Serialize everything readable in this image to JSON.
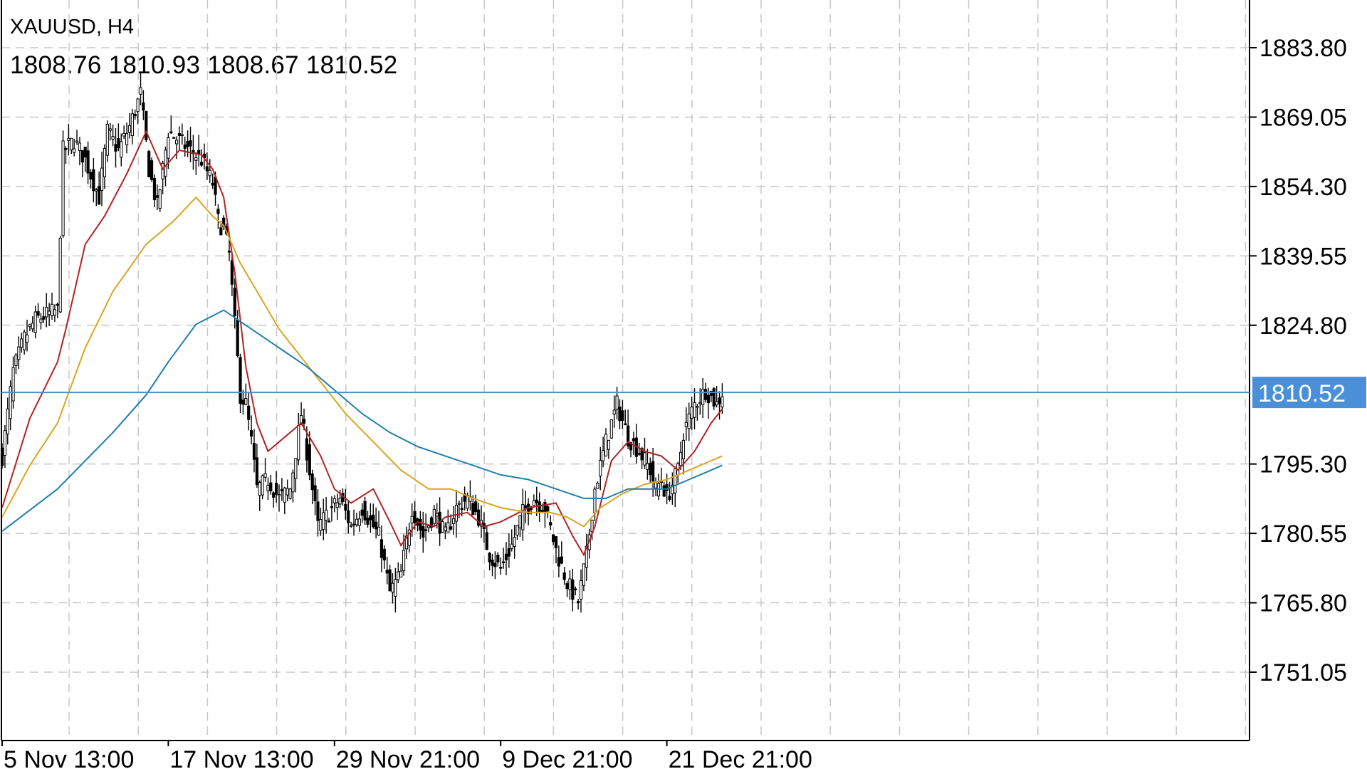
{
  "symbol_title": "XAUUSD, H4",
  "ohlc_text": "1808.76 1810.93 1808.67 1810.52",
  "colors": {
    "background": "#ffffff",
    "grid": "#c8c8c8",
    "candle": "#000000",
    "price_line": "#4a90c8",
    "price_tag_bg": "#4a90d9",
    "ma_fast": "#b22222",
    "ma_mid": "#daa520",
    "ma_slow": "#1f7fae"
  },
  "chart_data": {
    "type": "candlestick",
    "title": "XAUUSD, H4",
    "ylim": [
      1741.0,
      1893.0
    ],
    "y_ticks": [
      "1883.80",
      "1869.05",
      "1854.30",
      "1839.55",
      "1824.80",
      "1795.30",
      "1780.55",
      "1765.80",
      "1751.05"
    ],
    "y_tick_values": [
      1883.8,
      1869.05,
      1854.3,
      1839.55,
      1824.8,
      1795.3,
      1780.55,
      1765.8,
      1751.05
    ],
    "x_labels": [
      "5 Nov 13:00",
      "17 Nov 13:00",
      "29 Nov 21:00",
      "9 Dec 21:00",
      "21 Dec 21:00"
    ],
    "x_label_bar_index": [
      0,
      60,
      120,
      180,
      240
    ],
    "current_price": "1810.52",
    "current_price_value": 1810.52,
    "grid": true,
    "close_points": [
      [
        0,
        1797
      ],
      [
        4,
        1815
      ],
      [
        8,
        1822
      ],
      [
        12,
        1826
      ],
      [
        16,
        1827
      ],
      [
        20,
        1828
      ],
      [
        22,
        1862
      ],
      [
        26,
        1864
      ],
      [
        30,
        1860
      ],
      [
        35,
        1852
      ],
      [
        38,
        1866
      ],
      [
        42,
        1862
      ],
      [
        46,
        1867
      ],
      [
        50,
        1874
      ],
      [
        53,
        1858
      ],
      [
        56,
        1850
      ],
      [
        60,
        1866
      ],
      [
        64,
        1864
      ],
      [
        68,
        1862
      ],
      [
        72,
        1860
      ],
      [
        76,
        1855
      ],
      [
        78,
        1847
      ],
      [
        80,
        1845
      ],
      [
        82,
        1840
      ],
      [
        84,
        1825
      ],
      [
        86,
        1810
      ],
      [
        88,
        1808
      ],
      [
        90,
        1800
      ],
      [
        92,
        1790
      ],
      [
        96,
        1792
      ],
      [
        100,
        1788
      ],
      [
        104,
        1790
      ],
      [
        108,
        1806
      ],
      [
        111,
        1794
      ],
      [
        114,
        1782
      ],
      [
        118,
        1785
      ],
      [
        122,
        1788
      ],
      [
        126,
        1782
      ],
      [
        130,
        1786
      ],
      [
        136,
        1780
      ],
      [
        140,
        1768
      ],
      [
        144,
        1772
      ],
      [
        148,
        1786
      ],
      [
        152,
        1780
      ],
      [
        156,
        1785
      ],
      [
        160,
        1780
      ],
      [
        164,
        1786
      ],
      [
        168,
        1788
      ],
      [
        172,
        1784
      ],
      [
        176,
        1776
      ],
      [
        180,
        1773
      ],
      [
        184,
        1778
      ],
      [
        188,
        1785
      ],
      [
        192,
        1788
      ],
      [
        196,
        1786
      ],
      [
        200,
        1777
      ],
      [
        204,
        1770
      ],
      [
        208,
        1766
      ],
      [
        211,
        1776
      ],
      [
        214,
        1790
      ],
      [
        218,
        1800
      ],
      [
        222,
        1808
      ],
      [
        226,
        1801
      ],
      [
        230,
        1798
      ],
      [
        234,
        1794
      ],
      [
        236,
        1790
      ],
      [
        238,
        1792
      ],
      [
        240,
        1788
      ],
      [
        244,
        1794
      ],
      [
        246,
        1802
      ],
      [
        250,
        1808
      ],
      [
        254,
        1811
      ],
      [
        258,
        1808
      ],
      [
        260,
        1810.52
      ]
    ],
    "series": [
      {
        "color": "#b22222",
        "points": [
          [
            0,
            1786
          ],
          [
            10,
            1805
          ],
          [
            20,
            1817
          ],
          [
            23,
            1824
          ],
          [
            30,
            1842
          ],
          [
            37,
            1848
          ],
          [
            45,
            1857
          ],
          [
            52,
            1866
          ],
          [
            58,
            1858
          ],
          [
            64,
            1862
          ],
          [
            72,
            1861
          ],
          [
            76,
            1858
          ],
          [
            80,
            1852
          ],
          [
            84,
            1836
          ],
          [
            88,
            1816
          ],
          [
            92,
            1804
          ],
          [
            96,
            1798
          ],
          [
            108,
            1804
          ],
          [
            115,
            1797
          ],
          [
            120,
            1790
          ],
          [
            126,
            1787
          ],
          [
            134,
            1790
          ],
          [
            140,
            1783
          ],
          [
            144,
            1778
          ],
          [
            150,
            1783
          ],
          [
            156,
            1782
          ],
          [
            160,
            1784
          ],
          [
            168,
            1785
          ],
          [
            174,
            1782
          ],
          [
            180,
            1783
          ],
          [
            190,
            1786
          ],
          [
            200,
            1787
          ],
          [
            206,
            1780
          ],
          [
            210,
            1776
          ],
          [
            214,
            1782
          ],
          [
            220,
            1796
          ],
          [
            226,
            1800
          ],
          [
            232,
            1798
          ],
          [
            238,
            1797
          ],
          [
            244,
            1794
          ],
          [
            250,
            1798
          ],
          [
            256,
            1804
          ],
          [
            260,
            1807
          ]
        ]
      },
      {
        "color": "#daa520",
        "points": [
          [
            0,
            1784
          ],
          [
            10,
            1795
          ],
          [
            20,
            1804
          ],
          [
            30,
            1820
          ],
          [
            40,
            1832
          ],
          [
            52,
            1842
          ],
          [
            62,
            1847
          ],
          [
            70,
            1852
          ],
          [
            76,
            1848
          ],
          [
            80,
            1846
          ],
          [
            86,
            1838
          ],
          [
            94,
            1830
          ],
          [
            100,
            1824
          ],
          [
            108,
            1818
          ],
          [
            116,
            1812
          ],
          [
            124,
            1806
          ],
          [
            134,
            1800
          ],
          [
            144,
            1794
          ],
          [
            154,
            1790
          ],
          [
            162,
            1790
          ],
          [
            170,
            1788
          ],
          [
            180,
            1786
          ],
          [
            190,
            1785
          ],
          [
            198,
            1785
          ],
          [
            204,
            1784
          ],
          [
            210,
            1782
          ],
          [
            216,
            1786
          ],
          [
            224,
            1789
          ],
          [
            232,
            1791
          ],
          [
            240,
            1792
          ],
          [
            248,
            1794
          ],
          [
            256,
            1796
          ],
          [
            260,
            1797
          ]
        ]
      },
      {
        "color": "#1f7fae",
        "points": [
          [
            0,
            1781
          ],
          [
            20,
            1790
          ],
          [
            40,
            1802
          ],
          [
            52,
            1810
          ],
          [
            60,
            1817
          ],
          [
            70,
            1825
          ],
          [
            80,
            1828
          ],
          [
            90,
            1824
          ],
          [
            100,
            1820
          ],
          [
            110,
            1816
          ],
          [
            120,
            1811
          ],
          [
            130,
            1806
          ],
          [
            140,
            1802
          ],
          [
            150,
            1799
          ],
          [
            160,
            1797
          ],
          [
            170,
            1795
          ],
          [
            180,
            1793
          ],
          [
            190,
            1792
          ],
          [
            200,
            1790
          ],
          [
            210,
            1788
          ],
          [
            218,
            1788
          ],
          [
            226,
            1790
          ],
          [
            234,
            1790
          ],
          [
            240,
            1790
          ],
          [
            248,
            1792
          ],
          [
            256,
            1794
          ],
          [
            260,
            1795
          ]
        ]
      }
    ]
  }
}
